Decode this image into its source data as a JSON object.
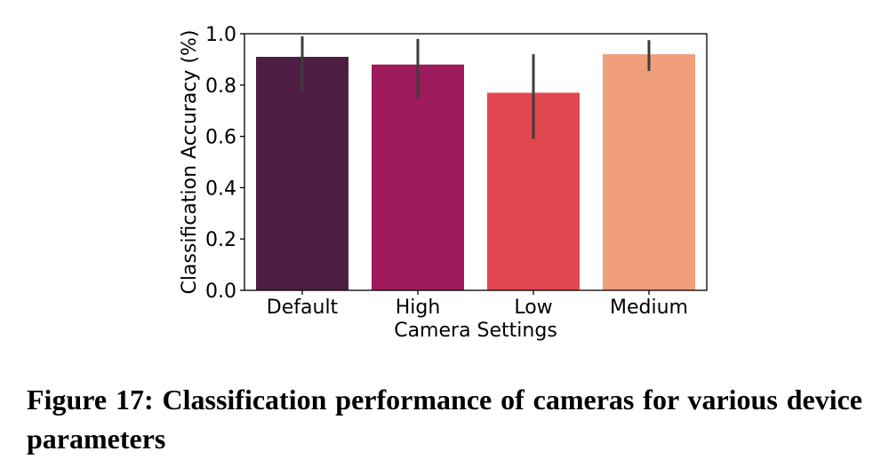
{
  "chart_data": {
    "type": "bar",
    "categories": [
      "Default",
      "High",
      "Low",
      "Medium"
    ],
    "values": [
      0.91,
      0.88,
      0.77,
      0.92
    ],
    "error_low": [
      0.78,
      0.75,
      0.59,
      0.855
    ],
    "error_high": [
      0.99,
      0.98,
      0.92,
      0.975
    ],
    "colors": [
      "#4f1f43",
      "#9e1b5c",
      "#e3474f",
      "#f09e7b"
    ],
    "error_color": "#3d3d3d",
    "xlabel": "Camera Settings",
    "ylabel": "Classification Accuracy (%)",
    "ylim": [
      0,
      1.0
    ],
    "yticks": [
      0.0,
      0.2,
      0.4,
      0.6,
      0.8,
      1.0
    ],
    "ytick_labels": [
      "0.0",
      "0.2",
      "0.4",
      "0.6",
      "0.8",
      "1.0"
    ],
    "grid": false,
    "legend": "none"
  },
  "caption": "Figure 17: Classification performance of cameras for various device parameters"
}
